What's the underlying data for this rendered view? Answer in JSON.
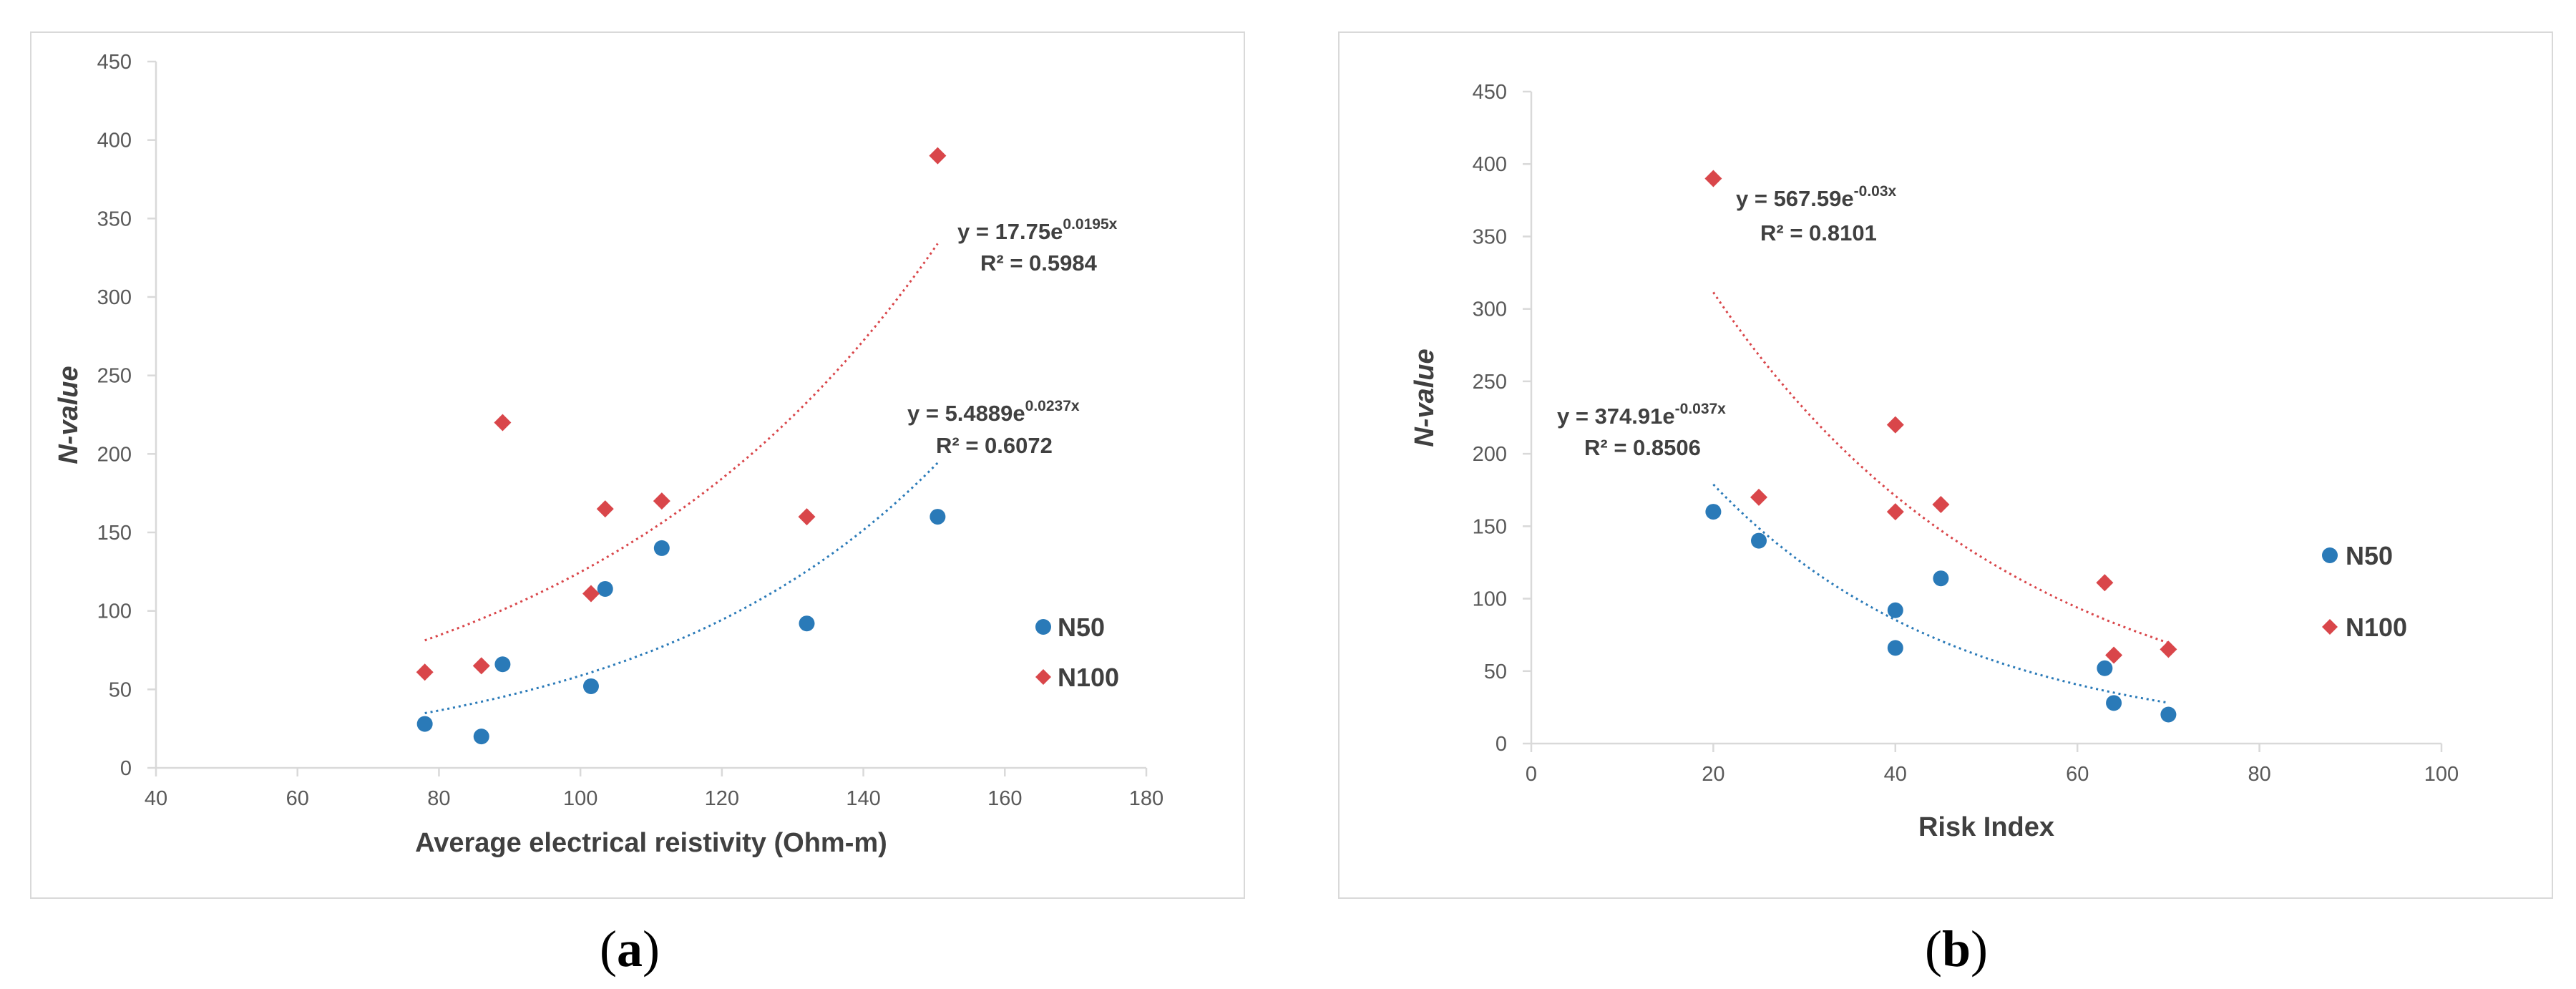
{
  "colors": {
    "n50": "#2a7ab8",
    "n100": "#d9464a",
    "axis": "#d9d9d9",
    "frame": "#d9d9d9",
    "text": "#404040"
  },
  "chart_data": [
    {
      "type": "scatter",
      "panel": "a",
      "caption": {
        "open": "(",
        "letter": "a",
        "close": ")"
      },
      "xlabel": "Average electrical reistivity (Ohm-m)",
      "ylabel": "N-value",
      "xlim": [
        40,
        180
      ],
      "ylim": [
        0,
        450
      ],
      "xticks": [
        40,
        60,
        80,
        100,
        120,
        140,
        160,
        180
      ],
      "yticks": [
        0,
        50,
        100,
        150,
        200,
        250,
        300,
        350,
        400,
        450
      ],
      "legend": [
        "N50",
        "N100"
      ],
      "series": [
        {
          "name": "N50",
          "marker": "circle",
          "x": [
            78,
            86,
            89,
            101.5,
            103.5,
            111.5,
            132,
            150.5
          ],
          "y": [
            28,
            20,
            66,
            52,
            114,
            140,
            92,
            160
          ],
          "trendline": {
            "type": "exponential",
            "a": 5.4889,
            "b": 0.0237,
            "range": [
              78,
              150.5
            ]
          },
          "equation": {
            "base": "y = 5.4889e",
            "exp": "0.0237x",
            "r2": "R² = 0.6072"
          }
        },
        {
          "name": "N100",
          "marker": "diamond",
          "x": [
            78,
            86,
            89,
            101.5,
            103.5,
            111.5,
            132,
            150.5
          ],
          "y": [
            61,
            65,
            220,
            111,
            165,
            170,
            160,
            390
          ],
          "trendline": {
            "type": "exponential",
            "a": 17.75,
            "b": 0.0195,
            "range": [
              78,
              150.5
            ]
          },
          "equation": {
            "base": "y = 17.75e",
            "exp": "0.0195x",
            "r2": "R² = 0.5984"
          }
        }
      ]
    },
    {
      "type": "scatter",
      "panel": "b",
      "caption": {
        "open": "(",
        "letter": "b",
        "close": ")"
      },
      "xlabel": "Risk Index",
      "ylabel": "N-value",
      "xlim": [
        0,
        100
      ],
      "ylim": [
        0,
        450
      ],
      "xticks": [
        0,
        20,
        40,
        60,
        80,
        100
      ],
      "yticks": [
        0,
        50,
        100,
        150,
        200,
        250,
        300,
        350,
        400,
        450
      ],
      "legend": [
        "N50",
        "N100"
      ],
      "series": [
        {
          "name": "N50",
          "marker": "circle",
          "x": [
            20,
            25,
            40,
            40,
            45,
            63,
            64,
            70
          ],
          "y": [
            160,
            140,
            92,
            66,
            114,
            52,
            28,
            20
          ],
          "trendline": {
            "type": "exponential",
            "a": 374.91,
            "b": -0.037,
            "range": [
              20,
              70
            ]
          },
          "equation": {
            "base": "y = 374.91e",
            "exp": "-0.037x",
            "r2": "R² = 0.8506"
          }
        },
        {
          "name": "N100",
          "marker": "diamond",
          "x": [
            20,
            25,
            40,
            40,
            45,
            63,
            64,
            70
          ],
          "y": [
            390,
            170,
            220,
            160,
            165,
            111,
            61,
            65
          ],
          "trendline": {
            "type": "exponential",
            "a": 567.59,
            "b": -0.03,
            "range": [
              20,
              70
            ]
          },
          "equation": {
            "base": "y = 567.59e",
            "exp": "-0.03x",
            "r2": "R² = 0.8101"
          }
        }
      ]
    }
  ]
}
